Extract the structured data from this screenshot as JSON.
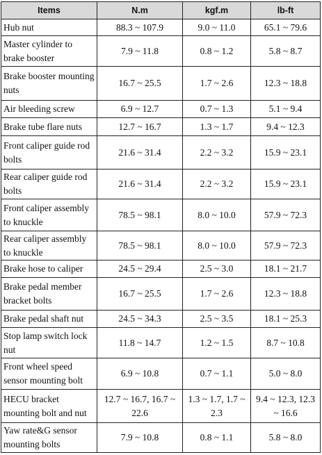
{
  "table": {
    "header": [
      "Items",
      "N.m",
      "kgf.m",
      "lb-ft"
    ],
    "rows": [
      [
        "Hub nut",
        "88.3 ~ 107.9",
        "9.0 ~ 11.0",
        "65.1 ~ 79.6"
      ],
      [
        "Master cylinder to brake booster",
        "7.9 ~ 11.8",
        "0.8 ~ 1.2",
        "5.8 ~ 8.7"
      ],
      [
        "Brake booster mounting nuts",
        "16.7 ~ 25.5",
        "1.7 ~ 2.6",
        "12.3 ~ 18.8"
      ],
      [
        "Air bleeding screw",
        "6.9 ~ 12.7",
        "0.7 ~ 1.3",
        "5.1 ~ 9.4"
      ],
      [
        "Brake tube flare nuts",
        "12.7 ~ 16.7",
        "1.3 ~ 1.7",
        "9.4 ~ 12.3"
      ],
      [
        "Front caliper guide rod bolts",
        "21.6 ~ 31.4",
        "2.2 ~ 3.2",
        "15.9 ~ 23.1"
      ],
      [
        "Rear caliper guide rod bolts",
        "21.6 ~ 31.4",
        "2.2 ~ 3.2",
        "15.9 ~ 23.1"
      ],
      [
        "Front caliper assembly to knuckle",
        "78.5 ~ 98.1",
        "8.0 ~ 10.0",
        "57.9 ~ 72.3"
      ],
      [
        "Rear caliper assembly to knuckle",
        "78.5 ~ 98.1",
        "8.0 ~ 10.0",
        "57.9 ~ 72.3"
      ],
      [
        "Brake hose to caliper",
        "24.5 ~ 29.4",
        "2.5 ~ 3.0",
        "18.1 ~ 21.7"
      ],
      [
        "Brake pedal member bracket bolts",
        "16.7 ~ 25.5",
        "1.7 ~ 2.6",
        "12.3 ~ 18.8"
      ],
      [
        "Brake pedal shaft nut",
        "24.5 ~ 34.3",
        "2.5 ~ 3.5",
        "18.1 ~ 25.3"
      ],
      [
        "Stop lamp switch lock nut",
        "11.8 ~ 14.7",
        "1.2 ~ 1.5",
        "8.7 ~ 10.8"
      ],
      [
        "Front wheel speed sensor mounting bolt",
        "6.9 ~ 10.8",
        "0.7 ~ 1.1",
        "5.0 ~ 8.0"
      ],
      [
        "HECU bracket mounting bolt and nut",
        "12.7 ~ 16.7, 16.7 ~ 22.6",
        "1.3 ~ 1.7, 1.7 ~ 2.3",
        "9.4 ~ 12.3, 12.3 ~ 16.6"
      ],
      [
        "Yaw rate&G sensor mounting bolts",
        "7.9 ~ 10.8",
        "0.8 ~ 1.1",
        "5.8 ~ 8.0"
      ]
    ]
  }
}
